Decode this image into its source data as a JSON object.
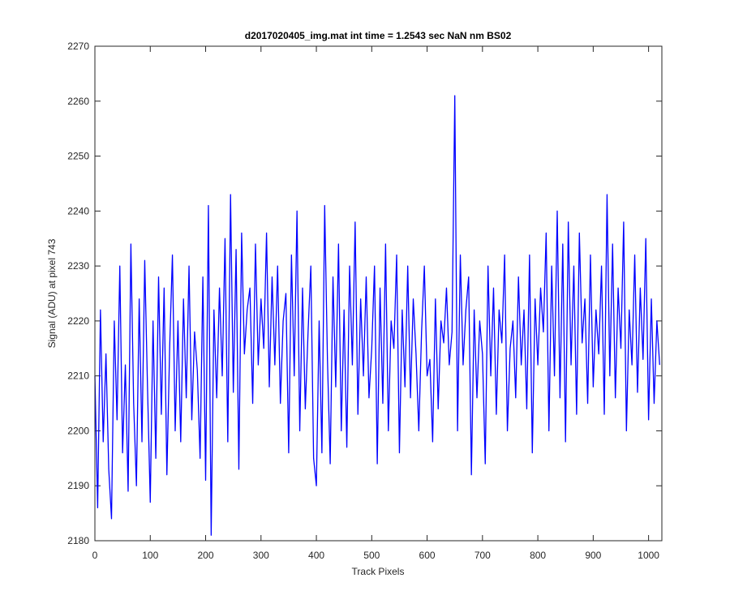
{
  "chart_data": {
    "type": "line",
    "title": "d2017020405_img.mat int time = 1.2543 sec  NaN nm BS02",
    "xlabel": "Track Pixels",
    "ylabel": "Signal (ADU) at pixel 743",
    "xlim": [
      0,
      1024
    ],
    "ylim": [
      2180,
      2270
    ],
    "xticks": [
      0,
      100,
      200,
      300,
      400,
      500,
      600,
      700,
      800,
      900,
      1000
    ],
    "yticks": [
      2180,
      2190,
      2200,
      2210,
      2220,
      2230,
      2240,
      2250,
      2260,
      2270
    ],
    "x": [
      0,
      5,
      10,
      15,
      20,
      25,
      30,
      35,
      40,
      45,
      50,
      55,
      60,
      65,
      70,
      75,
      80,
      85,
      90,
      95,
      100,
      105,
      110,
      115,
      120,
      125,
      130,
      135,
      140,
      145,
      150,
      155,
      160,
      165,
      170,
      175,
      180,
      185,
      190,
      195,
      200,
      205,
      210,
      215,
      220,
      225,
      230,
      235,
      240,
      245,
      250,
      255,
      260,
      265,
      270,
      275,
      280,
      285,
      290,
      295,
      300,
      305,
      310,
      315,
      320,
      325,
      330,
      335,
      340,
      345,
      350,
      355,
      360,
      365,
      370,
      375,
      380,
      385,
      390,
      395,
      400,
      405,
      410,
      415,
      420,
      425,
      430,
      435,
      440,
      445,
      450,
      455,
      460,
      465,
      470,
      475,
      480,
      485,
      490,
      495,
      500,
      505,
      510,
      515,
      520,
      525,
      530,
      535,
      540,
      545,
      550,
      555,
      560,
      565,
      570,
      575,
      580,
      585,
      590,
      595,
      600,
      605,
      610,
      615,
      620,
      625,
      630,
      635,
      640,
      645,
      650,
      655,
      660,
      665,
      670,
      675,
      680,
      685,
      690,
      695,
      700,
      705,
      710,
      715,
      720,
      725,
      730,
      735,
      740,
      745,
      750,
      755,
      760,
      765,
      770,
      775,
      780,
      785,
      790,
      795,
      800,
      805,
      810,
      815,
      820,
      825,
      830,
      835,
      840,
      845,
      850,
      855,
      860,
      865,
      870,
      875,
      880,
      885,
      890,
      895,
      900,
      905,
      910,
      915,
      920,
      925,
      930,
      935,
      940,
      945,
      950,
      955,
      960,
      965,
      970,
      975,
      980,
      985,
      990,
      995,
      1000,
      1005,
      1010,
      1015,
      1020
    ],
    "series": [
      {
        "color": "#0000ff",
        "values": [
          2210,
          2186,
          2222,
          2198,
          2214,
          2193,
          2184,
          2220,
          2202,
          2230,
          2196,
          2212,
          2189,
          2234,
          2205,
          2190,
          2224,
          2198,
          2231,
          2208,
          2187,
          2220,
          2195,
          2228,
          2203,
          2226,
          2192,
          2215,
          2232,
          2200,
          2220,
          2198,
          2224,
          2206,
          2230,
          2202,
          2218,
          2211,
          2195,
          2228,
          2191,
          2241,
          2181,
          2222,
          2206,
          2226,
          2210,
          2235,
          2198,
          2243,
          2207,
          2233,
          2193,
          2236,
          2214,
          2222,
          2226,
          2205,
          2234,
          2212,
          2224,
          2215,
          2236,
          2208,
          2228,
          2212,
          2230,
          2205,
          2220,
          2225,
          2196,
          2232,
          2210,
          2240,
          2200,
          2226,
          2204,
          2218,
          2230,
          2195,
          2190,
          2220,
          2196,
          2241,
          2213,
          2194,
          2228,
          2208,
          2234,
          2200,
          2222,
          2197,
          2230,
          2212,
          2238,
          2203,
          2224,
          2210,
          2228,
          2206,
          2215,
          2230,
          2194,
          2226,
          2205,
          2234,
          2200,
          2220,
          2215,
          2232,
          2196,
          2222,
          2208,
          2230,
          2206,
          2224,
          2214,
          2200,
          2218,
          2230,
          2210,
          2213,
          2198,
          2224,
          2204,
          2220,
          2216,
          2226,
          2212,
          2218,
          2261,
          2200,
          2232,
          2212,
          2222,
          2228,
          2192,
          2222,
          2206,
          2220,
          2214,
          2194,
          2230,
          2210,
          2226,
          2203,
          2222,
          2216,
          2232,
          2200,
          2215,
          2220,
          2206,
          2228,
          2212,
          2222,
          2204,
          2232,
          2196,
          2224,
          2212,
          2226,
          2218,
          2236,
          2200,
          2230,
          2210,
          2240,
          2206,
          2234,
          2198,
          2238,
          2212,
          2230,
          2203,
          2236,
          2216,
          2224,
          2205,
          2232,
          2208,
          2222,
          2214,
          2230,
          2203,
          2243,
          2210,
          2234,
          2206,
          2226,
          2215,
          2238,
          2200,
          2222,
          2212,
          2232,
          2207,
          2226,
          2213,
          2235,
          2202,
          2224,
          2205,
          2220,
          2212
        ]
      }
    ]
  }
}
